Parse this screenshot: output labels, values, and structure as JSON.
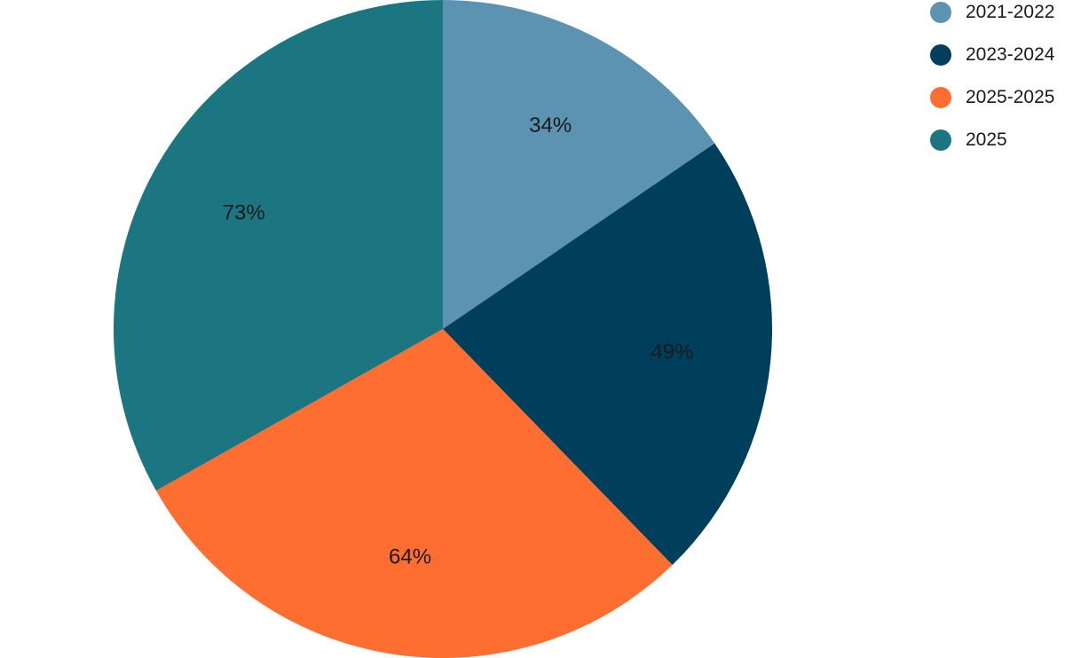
{
  "chart_data": {
    "type": "pie",
    "title": "",
    "legend_position": "top-right",
    "slices": [
      {
        "label": "2021-2022",
        "value": 34,
        "value_label": "34%",
        "color": "#5b93b0"
      },
      {
        "label": "2023-2024",
        "value": 49,
        "value_label": "49%",
        "color": "#003f5c"
      },
      {
        "label": "2025-2025",
        "value": 64,
        "value_label": "64%",
        "color": "#ff6e31"
      },
      {
        "label": "2025",
        "value": 73,
        "value_label": "73%",
        "color": "#1c7682"
      }
    ]
  }
}
